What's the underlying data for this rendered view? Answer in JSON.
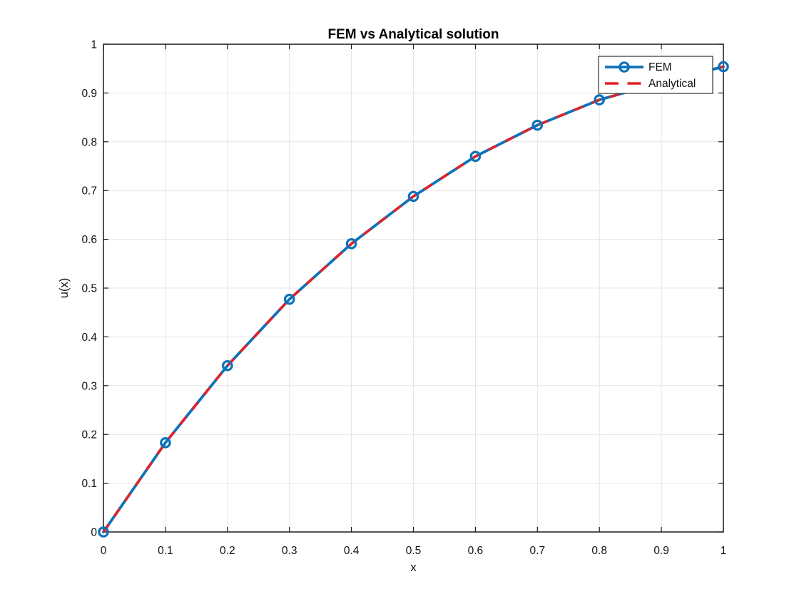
{
  "chart_data": {
    "type": "line",
    "title": "FEM vs Analytical solution",
    "xlabel": "x",
    "ylabel": "u(x)",
    "xlim": [
      0,
      1
    ],
    "ylim": [
      0,
      1
    ],
    "xticks": [
      0,
      0.1,
      0.2,
      0.3,
      0.4,
      0.5,
      0.6,
      0.7,
      0.8,
      0.9,
      1
    ],
    "yticks": [
      0,
      0.1,
      0.2,
      0.3,
      0.4,
      0.5,
      0.6,
      0.7,
      0.8,
      0.9,
      1
    ],
    "xtick_labels": [
      "0",
      "0.1",
      "0.2",
      "0.3",
      "0.4",
      "0.5",
      "0.6",
      "0.7",
      "0.8",
      "0.9",
      "1"
    ],
    "ytick_labels": [
      "0",
      "0.1",
      "0.2",
      "0.3",
      "0.4",
      "0.5",
      "0.6",
      "0.7",
      "0.8",
      "0.9",
      "1"
    ],
    "grid": true,
    "legend_position": "northeast",
    "x": [
      0,
      0.1,
      0.2,
      0.3,
      0.4,
      0.5,
      0.6,
      0.7,
      0.8,
      0.9,
      1
    ],
    "series": [
      {
        "name": "FEM",
        "color": "#0e72b9",
        "line": "solid",
        "marker": "circle",
        "values": [
          0,
          0.183,
          0.341,
          0.477,
          0.591,
          0.688,
          0.77,
          0.834,
          0.886,
          0.922,
          0.954
        ]
      },
      {
        "name": "Analytical",
        "color": "#e32226",
        "line": "dashed",
        "marker": "none",
        "values": [
          0,
          0.183,
          0.341,
          0.477,
          0.591,
          0.688,
          0.77,
          0.834,
          0.886,
          0.922,
          0.954
        ]
      }
    ],
    "colors": {
      "grid": "#e4e4e4",
      "axis": "#1a1a1a",
      "background": "#ffffff"
    }
  }
}
